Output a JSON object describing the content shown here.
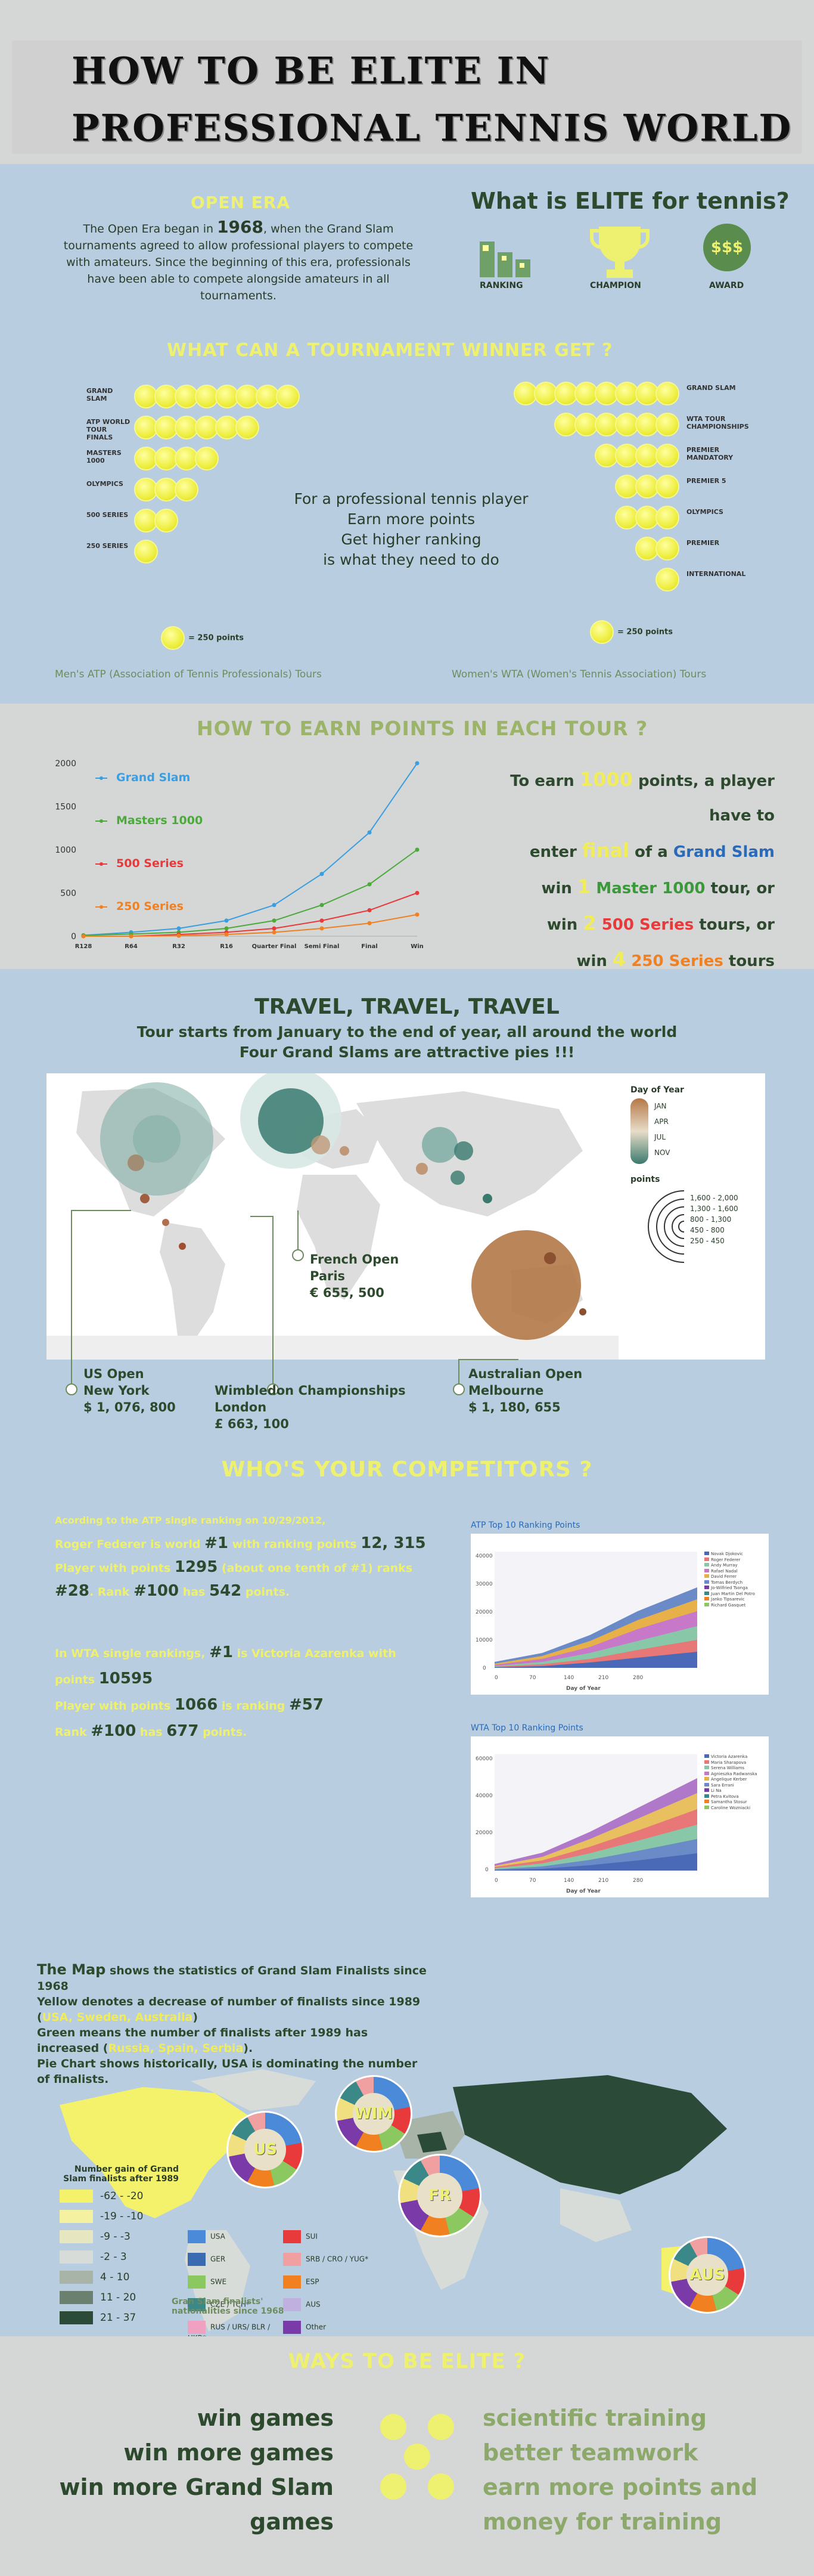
{
  "header": {
    "title_line1": "HOW TO BE ELITE IN",
    "title_line2": "PROFESSIONAL TENNIS WORLD"
  },
  "open_era": {
    "heading": "OPEN ERA",
    "text_pre": "The Open Era began in ",
    "year": "1968",
    "text_post": ", when the Grand Slam tournaments agreed to allow professional players to compete with amateurs. Since the beginning of this era, professionals have been able to compete alongside amateurs in all tournaments."
  },
  "elite": {
    "heading": "What is ELITE for tennis?",
    "icons": [
      {
        "label": "RANKING",
        "icon": "podium-icon"
      },
      {
        "label": "CHAMPION",
        "icon": "trophy-icon"
      },
      {
        "label": "AWARD",
        "icon": "money-icon",
        "symbol": "$$$"
      }
    ]
  },
  "winner": {
    "heading": "WHAT CAN A TOURNAMENT WINNER GET  ?",
    "atp": [
      {
        "label": "GRAND SLAM",
        "coins": 8
      },
      {
        "label": "ATP WORLD TOUR FINALS",
        "coins": 6
      },
      {
        "label": "MASTERS 1000",
        "coins": 4
      },
      {
        "label": "OLYMPICS",
        "coins": 3
      },
      {
        "label": "500 SERIES",
        "coins": 2
      },
      {
        "label": "250 SERIES",
        "coins": 1
      }
    ],
    "wta": [
      {
        "label": "GRAND SLAM",
        "coins": 8
      },
      {
        "label": "WTA TOUR CHAMPIONSHIPS",
        "coins": 6
      },
      {
        "label": "PREMIER MANDATORY",
        "coins": 4
      },
      {
        "label": "PREMIER 5",
        "coins": 3
      },
      {
        "label": "OLYMPICS",
        "coins": 3
      },
      {
        "label": "PREMIER",
        "coins": 2
      },
      {
        "label": "INTERNATIONAL",
        "coins": 1
      }
    ],
    "center_lines": [
      "For a professional tennis player",
      "Earn more points",
      "Get higher ranking",
      "is what they need to do"
    ],
    "coin_legend": "= 250 points",
    "atp_caption": "Men's ATP (Association of Tennis Professionals) Tours",
    "wta_caption": "Women's WTA (Women's Tennis Association) Tours"
  },
  "earn": {
    "heading": "HOW TO EARN POINTS IN EACH TOUR ?",
    "text": [
      {
        "pre": "To earn ",
        "hl": "1000",
        "post": " points, a player have to"
      },
      {
        "pre": "enter ",
        "hl": "final",
        "post": " of a ",
        "tail": "Grand Slam"
      },
      {
        "pre": "win ",
        "hl": "1",
        "post": " ",
        "tail": "Master 1000",
        "end": "  tour, or"
      },
      {
        "pre": "win ",
        "hl": "2",
        "post": "   ",
        "tail": "500 Series",
        "end": " tours, or"
      },
      {
        "pre": "win ",
        "hl": "4",
        "post": "      ",
        "tail": "250 Series",
        "end": " tours"
      }
    ]
  },
  "chart_data": {
    "type": "line",
    "categories": [
      "R128",
      "R64",
      "R32",
      "R16",
      "Quarter Final",
      "Semi Final",
      "Final",
      "Win"
    ],
    "ylim": [
      0,
      2000
    ],
    "yticks": [
      0,
      500,
      1000,
      1500,
      2000
    ],
    "series": [
      {
        "name": "Grand Slam",
        "color": "#3a9ee0",
        "values": [
          10,
          45,
          90,
          180,
          360,
          720,
          1200,
          2000
        ]
      },
      {
        "name": "Masters 1000",
        "color": "#4aaa3a",
        "values": [
          10,
          25,
          45,
          90,
          180,
          360,
          600,
          1000
        ]
      },
      {
        "name": "500 Series",
        "color": "#e83a3a",
        "values": [
          0,
          0,
          20,
          45,
          90,
          180,
          300,
          500
        ]
      },
      {
        "name": "250 Series",
        "color": "#f08020",
        "values": [
          0,
          0,
          5,
          20,
          45,
          90,
          150,
          250
        ]
      }
    ]
  },
  "travel": {
    "heading": "TRAVEL, TRAVEL, TRAVEL",
    "sub1": "Tour starts from January to the end of year, all around the world",
    "sub2": "Four Grand Slams are attractive pies !!!",
    "legend_title": "Day of Year",
    "legend_months": [
      "JAN",
      "APR",
      "JUL",
      "NOV"
    ],
    "points_title": "points",
    "points_bins": [
      "1,600 - 2,000",
      "1,300 - 1,600",
      "800 - 1,300",
      "450 - 800",
      "250 - 450"
    ],
    "slams": [
      {
        "name": "French Open",
        "city": "Paris",
        "prize": "€ 655, 500"
      },
      {
        "name": "US Open",
        "city": "New York",
        "prize": "$ 1, 076, 800"
      },
      {
        "name": "Wimbledon Championships",
        "city": "London",
        "prize": "£ 663, 100"
      },
      {
        "name": "Australian Open",
        "city": "Melbourne",
        "prize": "$ 1, 180, 655"
      }
    ]
  },
  "competitors": {
    "heading": "WHO'S YOUR COMPETITORS ?",
    "atp_lines": [
      {
        "t": "Acording to the ATP single ranking on 10/29/2012,"
      },
      {
        "t": "Roger Federer is world ",
        "b": "#1",
        "t2": " with ranking points ",
        "b2": "12, 315"
      },
      {
        "t": "Player with points ",
        "b": "1295",
        "t2": " (about one tenth of #1) ranks"
      },
      {
        "b": "#28",
        "t2": ". Rank ",
        "b2": "#100",
        "t3": " has ",
        "b3": "542",
        "t4": " points."
      }
    ],
    "wta_lines": [
      {
        "t": "In WTA single rankings, ",
        "b": "#1",
        "t2": " is Victoria Azarenka with"
      },
      {
        "t": "points ",
        "b": "10595"
      },
      {
        "t": "Player with points ",
        "b": "1066",
        "t2": " is ranking ",
        "b2": "#57"
      },
      {
        "t": "Rank ",
        "b": "#100",
        "t2": " has ",
        "b2": "677",
        "t3": " points."
      }
    ],
    "atp_chart_title": "ATP Top 10 Ranking Points",
    "wta_chart_title": "WTA Top 10 Ranking Points",
    "atp_chart_ylabel": "Points",
    "atp_chart_xlabel": "Day of Year",
    "atp_yticks": [
      "40000",
      "30000",
      "20000",
      "10000",
      "0"
    ],
    "wta_yticks": [
      "60000",
      "40000",
      "20000",
      "0"
    ],
    "xticks": [
      "0",
      "70",
      "140",
      "210",
      "280"
    ],
    "atp_players": [
      "Novak Djokovic",
      "Roger Federer",
      "Andy Murray",
      "Rafael Nadal",
      "David Ferrer",
      "Tomas Berdych",
      "Jo-Wilfried Tsonga",
      "Juan Martin Del Potro",
      "Janko Tipsarevic",
      "Richard Gasquet"
    ],
    "wta_players": [
      "Victoria Azarenka",
      "Maria Sharapova",
      "Serena Williams",
      "Agnieszka Radwanska",
      "Angelique Kerber",
      "Sara Errani",
      "Li Na",
      "Petra Kvitova",
      "Samantha Stosur",
      "Caroline Wozniacki"
    ]
  },
  "slam_map": {
    "text": [
      {
        "b": "The Map",
        "t": " shows the statistics of Grand Slam Finalists since 1968"
      },
      {
        "t": "Yellow denotes a decrease of number of finalists since 1989 (",
        "y": "USA, Sweden, Australia",
        "t2": ")"
      },
      {
        "t": "Green means the number of finalists after 1989 has increased (",
        "y": "Russia, Spain, Serbia",
        "t2": ")."
      },
      {
        "t": "Pie Chart shows historically, USA is dominating the number of finalists."
      }
    ],
    "gain_title": "Number gain of Grand Slam finalists after 1989",
    "gain_bins": [
      {
        "label": "-62 - -20",
        "color": "#f4f26a"
      },
      {
        "label": "-19 - -10",
        "color": "#f4f2a0"
      },
      {
        "label": "-9 - -3",
        "color": "#e6e6c0"
      },
      {
        "label": "-2 - 3",
        "color": "#d8dcd8"
      },
      {
        "label": "4 - 10",
        "color": "#a8b4a8"
      },
      {
        "label": "11 - 20",
        "color": "#6c8070"
      },
      {
        "label": "21 - 37",
        "color": "#2c4a38"
      }
    ],
    "nations": [
      {
        "label": "USA",
        "color": "#4a8ad8"
      },
      {
        "label": "SUI",
        "color": "#e83a3a"
      },
      {
        "label": "GER",
        "color": "#3a6ab0"
      },
      {
        "label": "SRB / CRO / YUG*",
        "color": "#f0a0a0"
      },
      {
        "label": "SWE",
        "color": "#8cc860"
      },
      {
        "label": "ESP",
        "color": "#f08020"
      },
      {
        "label": "CZE / TCH*",
        "color": "#3a8888"
      },
      {
        "label": "AUS",
        "color": "#c0b0e0"
      },
      {
        "label": "RUS / URS/ BLR / UKR*",
        "color": "#f0a0c0"
      },
      {
        "label": "Other",
        "color": "#7a3aa8"
      }
    ],
    "pies": [
      "US",
      "WIM",
      "FR",
      "AUS"
    ],
    "caption": "Gran Slam finalists' nationalities since 1968"
  },
  "ways": {
    "heading": "WAYS TO BE ELITE ?",
    "left": [
      "win games",
      "win more games",
      "win more Grand Slam",
      "games"
    ],
    "right": [
      "scientific training",
      "better teamwork",
      "earn more points and",
      "money for training"
    ]
  }
}
